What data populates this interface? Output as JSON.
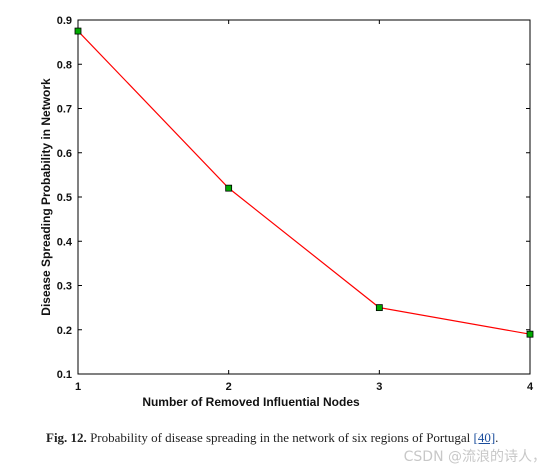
{
  "chart_data": {
    "type": "line",
    "title": "",
    "xlabel": "Number of Removed Influential Nodes",
    "ylabel": "Disease Spreading Probability in Network",
    "xlim": [
      1,
      4
    ],
    "ylim": [
      0.1,
      0.9
    ],
    "xticks": [
      "1",
      "2",
      "3",
      "4"
    ],
    "yticks": [
      "0.1",
      "0.2",
      "0.3",
      "0.4",
      "0.5",
      "0.6",
      "0.7",
      "0.8",
      "0.9"
    ],
    "grid": false,
    "legend": "none",
    "series": [
      {
        "x": [
          1,
          2,
          3,
          4
        ],
        "y": [
          0.875,
          0.52,
          0.25,
          0.19
        ],
        "line_color": "#ff0000",
        "marker_color": "#00aa00"
      }
    ]
  },
  "caption": {
    "label": "Fig. 12.",
    "text": "Probability of disease spreading in the network of six regions of Portugal",
    "ref": "[40]",
    "end": "."
  },
  "watermark": "CSDN @流浪的诗人，"
}
